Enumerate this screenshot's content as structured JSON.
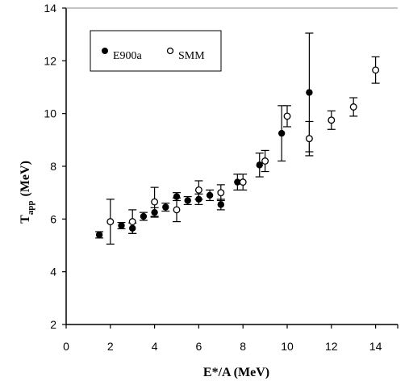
{
  "chart_data": {
    "type": "scatter",
    "xlabel": "E*/A (MeV)",
    "ylabel_main": "T",
    "ylabel_sub": "app",
    "ylabel_unit": "(MeV)",
    "xlim": [
      0,
      15
    ],
    "ylim": [
      2,
      14
    ],
    "x_ticks": [
      0,
      2,
      4,
      6,
      8,
      10,
      12,
      14
    ],
    "y_ticks": [
      2,
      4,
      6,
      8,
      10,
      12,
      14
    ],
    "x_tick_labels": [
      "0",
      "2",
      "4",
      "6",
      "8",
      "10",
      "12",
      "14"
    ],
    "y_tick_labels": [
      "2",
      "4",
      "6",
      "8",
      "10",
      "12",
      "14"
    ],
    "legend_position": "top-left",
    "series": [
      {
        "name": "E900a",
        "marker": "filled-circle",
        "points": [
          {
            "x": 1.5,
            "y": 5.4,
            "err": 0.12
          },
          {
            "x": 2.5,
            "y": 5.75,
            "err": 0.12
          },
          {
            "x": 3.0,
            "y": 5.65,
            "err": 0.2
          },
          {
            "x": 3.5,
            "y": 6.1,
            "err": 0.15
          },
          {
            "x": 4.0,
            "y": 6.25,
            "err": 0.18
          },
          {
            "x": 4.5,
            "y": 6.45,
            "err": 0.15
          },
          {
            "x": 5.0,
            "y": 6.85,
            "err": 0.15
          },
          {
            "x": 5.5,
            "y": 6.7,
            "err": 0.15
          },
          {
            "x": 6.0,
            "y": 6.75,
            "err": 0.2
          },
          {
            "x": 6.5,
            "y": 6.9,
            "err": 0.2
          },
          {
            "x": 7.0,
            "y": 6.55,
            "err": 0.2
          },
          {
            "x": 7.75,
            "y": 7.4,
            "err": 0.3
          },
          {
            "x": 8.75,
            "y": 8.05,
            "err": 0.45
          },
          {
            "x": 9.75,
            "y": 9.25,
            "err": 1.05
          },
          {
            "x": 11.0,
            "y": 10.8,
            "err": 2.25
          }
        ]
      },
      {
        "name": "SMM",
        "marker": "open-circle",
        "points": [
          {
            "x": 2.0,
            "y": 5.9,
            "err": 0.85
          },
          {
            "x": 3.0,
            "y": 5.9,
            "err": 0.45
          },
          {
            "x": 4.0,
            "y": 6.65,
            "err": 0.55
          },
          {
            "x": 5.0,
            "y": 6.35,
            "err": 0.45
          },
          {
            "x": 6.0,
            "y": 7.1,
            "err": 0.35
          },
          {
            "x": 7.0,
            "y": 7.0,
            "err": 0.3
          },
          {
            "x": 8.0,
            "y": 7.4,
            "err": 0.3
          },
          {
            "x": 9.0,
            "y": 8.2,
            "err": 0.4
          },
          {
            "x": 10.0,
            "y": 9.9,
            "err": 0.4
          },
          {
            "x": 11.0,
            "y": 9.05,
            "err": 0.65
          },
          {
            "x": 12.0,
            "y": 9.75,
            "err": 0.35
          },
          {
            "x": 13.0,
            "y": 10.25,
            "err": 0.35
          },
          {
            "x": 14.0,
            "y": 11.65,
            "err": 0.5
          }
        ]
      }
    ]
  }
}
